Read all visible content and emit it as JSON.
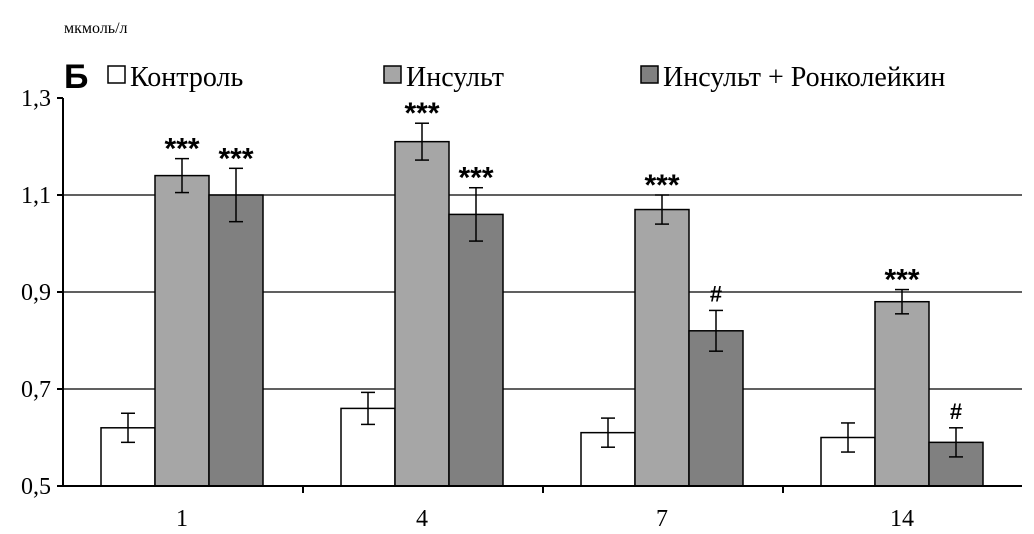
{
  "chart_data": {
    "type": "bar",
    "panel_label": "Б",
    "ylabel": "мкмоль/л",
    "xlabel": "",
    "ylim": [
      0.5,
      1.3
    ],
    "yticks": [
      "0,5",
      "0,7",
      "0,9",
      "1,1",
      "1,3"
    ],
    "ytick_values": [
      0.5,
      0.7,
      0.9,
      1.1,
      1.3
    ],
    "categories": [
      "1",
      "4",
      "7",
      "14"
    ],
    "gridlines_at": [
      0.7,
      0.9,
      1.1
    ],
    "legend_placement": "top",
    "series": [
      {
        "name": "Контроль",
        "color": "#ffffff",
        "values": [
          0.62,
          0.66,
          0.61,
          0.6
        ],
        "errors": [
          0.03,
          0.033,
          0.03,
          0.03
        ],
        "annotations": [
          "",
          "",
          "",
          ""
        ]
      },
      {
        "name": "Инсульт",
        "color": "#a6a6a6",
        "values": [
          1.14,
          1.21,
          1.07,
          0.88
        ],
        "errors": [
          0.035,
          0.038,
          0.03,
          0.025
        ],
        "annotations": [
          "***",
          "***",
          "***",
          "***"
        ]
      },
      {
        "name": "Инсульт + Ронколейкин",
        "color": "#808080",
        "values": [
          1.1,
          1.06,
          0.82,
          0.59
        ],
        "errors": [
          0.055,
          0.055,
          0.042,
          0.03
        ],
        "annotations": [
          "***",
          "***",
          "#",
          "#"
        ]
      }
    ]
  }
}
